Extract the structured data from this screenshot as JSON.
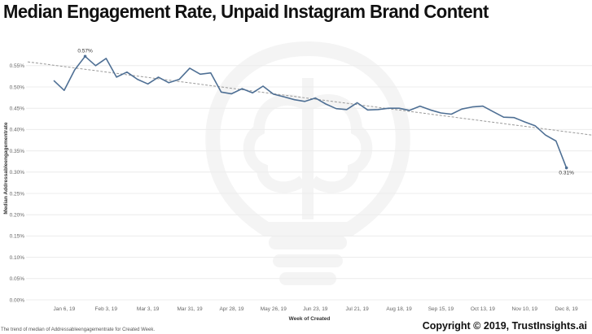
{
  "chart_data": {
    "type": "line",
    "title": "Median Engagement Rate, Unpaid Instagram Brand Content",
    "xlabel": "Week of Created",
    "ylabel": "Median Addressableengagementrate",
    "ylim": [
      0,
      0.56
    ],
    "yticks": [
      "0.00%",
      "0.05%",
      "0.10%",
      "0.15%",
      "0.20%",
      "0.25%",
      "0.30%",
      "0.35%",
      "0.40%",
      "0.45%",
      "0.50%",
      "0.55%"
    ],
    "xticks": [
      "Jan 6, 19",
      "Feb 3, 19",
      "Mar 3, 19",
      "Mar 31, 19",
      "Apr 28, 19",
      "May 26, 19",
      "Jun 23, 19",
      "Jul 21, 19",
      "Aug 18, 19",
      "Sep 15, 19",
      "Oct 13, 19",
      "Nov 10, 19",
      "Dec 8, 19"
    ],
    "x_start": "Dec 30, 18",
    "grid": "horizontal",
    "line_color": "#4e6f94",
    "trend_color": "#999999",
    "series": [
      {
        "values": [
          0.515,
          0.492,
          0.54,
          0.572,
          0.55,
          0.567,
          0.523,
          0.535,
          0.518,
          0.507,
          0.523,
          0.51,
          0.518,
          0.544,
          0.53,
          0.533,
          0.488,
          0.484,
          0.496,
          0.486,
          0.502,
          0.483,
          0.477,
          0.47,
          0.466,
          0.474,
          0.46,
          0.449,
          0.447,
          0.463,
          0.446,
          0.447,
          0.45,
          0.45,
          0.445,
          0.455,
          0.446,
          0.439,
          0.436,
          0.448,
          0.453,
          0.455,
          0.442,
          0.429,
          0.428,
          0.418,
          0.409,
          0.387,
          0.373,
          0.31
        ]
      }
    ],
    "trend_line": {
      "start": 0.559,
      "end": 0.387
    },
    "annotations": [
      {
        "label": "0.57%",
        "index": 3
      },
      {
        "label": "0.31%",
        "index": 49
      }
    ],
    "caption": "The trend of median of Addressableengagementrate for Created Week."
  },
  "footer": {
    "copyright": "Copyright © 2019, TrustInsights.ai"
  }
}
